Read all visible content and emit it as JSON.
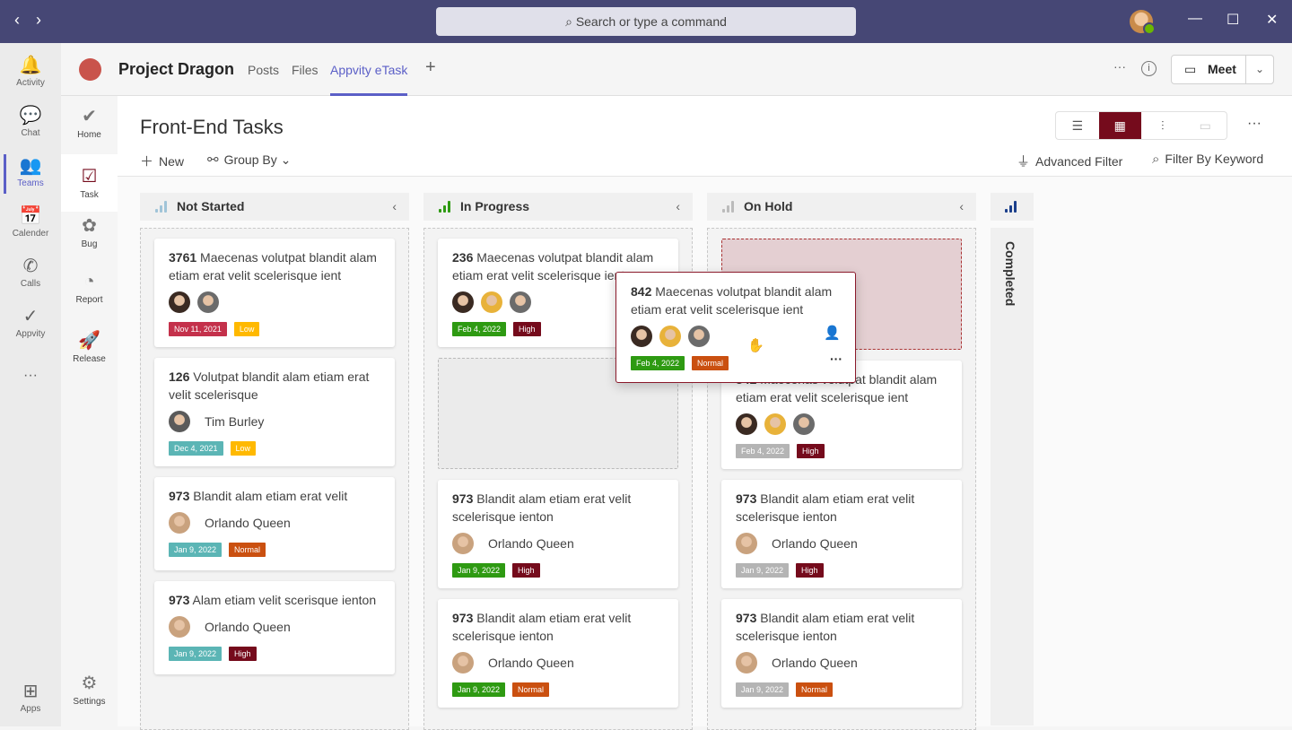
{
  "topbar": {
    "search_placeholder": "Search or type a command",
    "back": "‹",
    "forward": "›"
  },
  "rail": [
    {
      "label": "Activity",
      "icon": "bell-icon",
      "glyph": "🔔"
    },
    {
      "label": "Chat",
      "icon": "chat-icon",
      "glyph": "💬"
    },
    {
      "label": "Teams",
      "icon": "teams-icon",
      "glyph": "👥"
    },
    {
      "label": "Calender",
      "icon": "calendar-icon",
      "glyph": "📅"
    },
    {
      "label": "Calls",
      "icon": "phone-icon",
      "glyph": "✆"
    },
    {
      "label": "Appvity",
      "icon": "appvity-icon",
      "glyph": "✓"
    },
    {
      "label": "Apps",
      "icon": "apps-icon",
      "glyph": "⊞"
    }
  ],
  "header": {
    "title": "Project Dragon",
    "tabs": [
      "Posts",
      "Files",
      "Appvity eTask"
    ],
    "meet": "Meet"
  },
  "side": [
    {
      "label": "Home",
      "icon": "home-icon",
      "glyph": "✔"
    },
    {
      "label": "Task",
      "icon": "task-icon",
      "glyph": "☑"
    },
    {
      "label": "Bug",
      "icon": "bug-icon",
      "glyph": "✿"
    },
    {
      "label": "Report",
      "icon": "report-icon",
      "glyph": "◔"
    },
    {
      "label": "Release",
      "icon": "rocket-icon",
      "glyph": "🚀"
    },
    {
      "label": "Settings",
      "icon": "settings-icon",
      "glyph": "⚙"
    }
  ],
  "main": {
    "title": "Front-End Tasks",
    "new": "New",
    "group_by": "Group By",
    "advanced_filter": "Advanced Filter",
    "filter_keyword": "Filter By Keyword",
    "active_view": "board"
  },
  "colors": {
    "accent": "#750b1c",
    "teams": "#464775"
  },
  "columns": [
    {
      "name": "Not Started",
      "bar_color": "#a0c4d8",
      "cards": [
        {
          "id": "3761",
          "title": "Maecenas volutpat blandit alam etiam erat velit scelerisque ient",
          "avatars": [
            "#3a2a22",
            "#6b6b6b"
          ],
          "date": "Nov 11, 2021",
          "date_color": "#c4314b",
          "priority": "Low",
          "priority_color": "#ffb900"
        },
        {
          "id": "126",
          "title": "Volutpat blandit alam etiam erat velit scelerisque",
          "avatars": [
            "#5a5a5a"
          ],
          "assignee": "Tim Burley",
          "date": "Dec 4, 2021",
          "date_color": "#5bb5b5",
          "priority": "Low",
          "priority_color": "#ffb900"
        },
        {
          "id": "973",
          "title": "Blandit alam etiam erat velit",
          "avatars": [
            "#c9a27e"
          ],
          "assignee": "Orlando Queen",
          "date": "Jan 9, 2022",
          "date_color": "#5bb5b5",
          "priority": "Normal",
          "priority_color": "#ca5010"
        },
        {
          "id": "973",
          "title": "Alam etiam velit scerisque ienton",
          "avatars": [
            "#c9a27e"
          ],
          "assignee": "Orlando Queen",
          "date": "Jan 9, 2022",
          "date_color": "#5bb5b5",
          "priority": "High",
          "priority_color": "#750b1c"
        }
      ]
    },
    {
      "name": "In Progress",
      "bar_color": "#2e9a12",
      "placeholder_after": 1,
      "cards": [
        {
          "id": "236",
          "title": "Maecenas volutpat blandit alam etiam erat velit scelerisque ient",
          "avatars": [
            "#3a2a22",
            "#e8b23a",
            "#6b6b6b"
          ],
          "date": "Feb 4, 2022",
          "date_color": "#2e9a12",
          "priority": "High",
          "priority_color": "#750b1c"
        },
        {
          "id": "973",
          "title": "Blandit alam etiam erat velit scelerisque ienton",
          "avatars": [
            "#c9a27e"
          ],
          "assignee": "Orlando Queen",
          "date": "Jan 9, 2022",
          "date_color": "#2e9a12",
          "priority": "High",
          "priority_color": "#750b1c"
        },
        {
          "id": "973",
          "title": "Blandit alam etiam erat velit scelerisque ienton",
          "avatars": [
            "#c9a27e"
          ],
          "assignee": "Orlando Queen",
          "date": "Jan 9, 2022",
          "date_color": "#2e9a12",
          "priority": "Normal",
          "priority_color": "#ca5010"
        }
      ]
    },
    {
      "name": "On Hold",
      "bar_color": "#bbbbbb",
      "placeholder_after": 0,
      "cards": [
        {
          "id": "842",
          "title": "Maecenas volutpat blandit alam etiam erat velit scelerisque ient",
          "avatars": [
            "#3a2a22",
            "#e8b23a",
            "#6b6b6b"
          ],
          "date": "Feb 4, 2022",
          "date_color": "#b4b4b4",
          "priority": "High",
          "priority_color": "#750b1c"
        },
        {
          "id": "973",
          "title": "Blandit alam etiam erat velit scelerisque ienton",
          "avatars": [
            "#c9a27e"
          ],
          "assignee": "Orlando Queen",
          "date": "Jan 9, 2022",
          "date_color": "#b4b4b4",
          "priority": "High",
          "priority_color": "#750b1c"
        },
        {
          "id": "973",
          "title": "Blandit alam etiam erat velit scelerisque ienton",
          "avatars": [
            "#c9a27e"
          ],
          "assignee": "Orlando Queen",
          "date": "Jan 9, 2022",
          "date_color": "#b4b4b4",
          "priority": "Normal",
          "priority_color": "#ca5010"
        }
      ]
    }
  ],
  "completed": {
    "name": "Completed",
    "bar_color": "#1b3f8b"
  },
  "dragging": {
    "id": "842",
    "title": "Maecenas volutpat blandit alam etiam erat velit scelerisque ient",
    "avatars": [
      "#3a2a22",
      "#e8b23a",
      "#6b6b6b"
    ],
    "date": "Feb 4, 2022",
    "date_color": "#2e9a12",
    "priority": "Normal",
    "priority_color": "#ca5010"
  }
}
